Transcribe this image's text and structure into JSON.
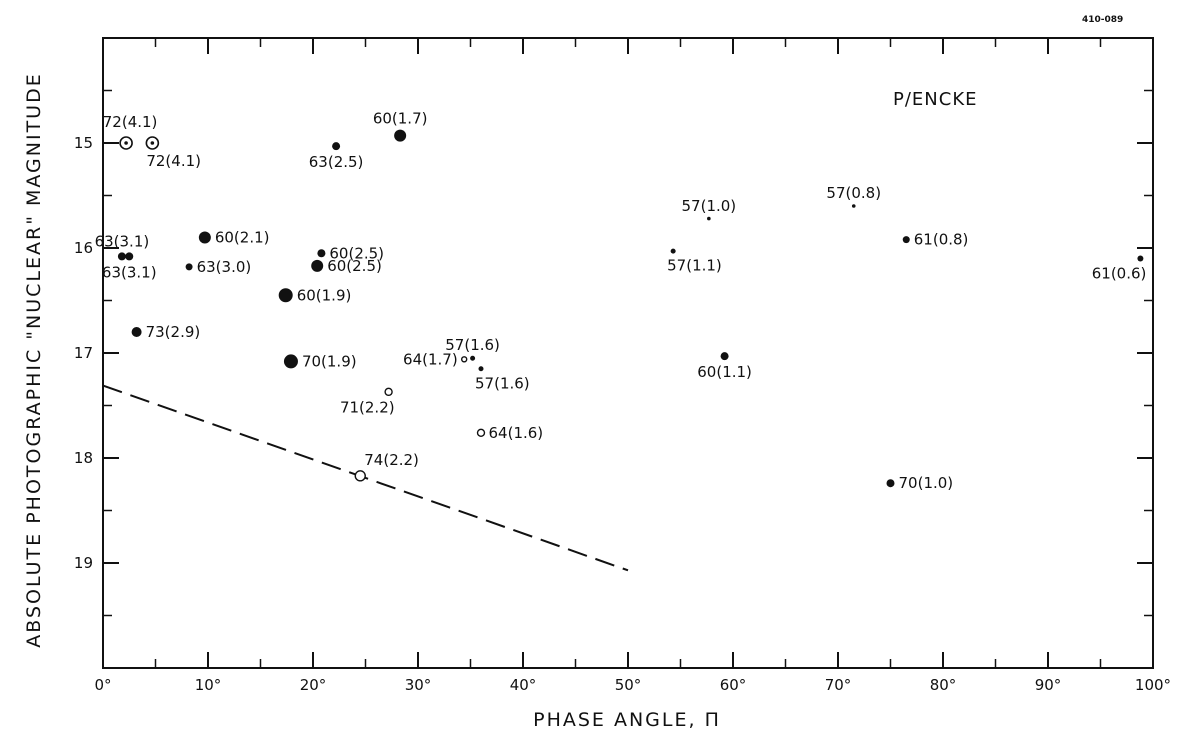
{
  "figure_id": "410-089",
  "chart_data": {
    "type": "scatter",
    "title": "P/ENCKE",
    "xlabel": "PHASE ANGLE, Π",
    "ylabel": "ABSOLUTE PHOTOGRAPHIC \"NUCLEAR\" MAGNITUDE",
    "xlim": [
      0,
      100
    ],
    "ylim": [
      14.0,
      20.0
    ],
    "y_inverted": true,
    "grid": false,
    "x_ticks": [
      0,
      10,
      20,
      30,
      40,
      50,
      60,
      70,
      80,
      90,
      100
    ],
    "x_tick_labels": [
      "0°",
      "10°",
      "20°",
      "30°",
      "40°",
      "50°",
      "60°",
      "70°",
      "80°",
      "90°",
      "100°"
    ],
    "y_ticks": [
      15,
      16,
      17,
      18,
      19
    ],
    "y_tick_labels": [
      "15",
      "16",
      "17",
      "18",
      "19"
    ],
    "points": [
      {
        "x": 2.2,
        "y": 15.0,
        "label": "72(4.1)",
        "marker": "circled-dot",
        "size": 6,
        "label_pos": "above-left"
      },
      {
        "x": 4.7,
        "y": 15.0,
        "label": "72(4.1)",
        "marker": "circled-dot",
        "size": 6,
        "label_pos": "below-right"
      },
      {
        "x": 28.3,
        "y": 14.93,
        "label": "60(1.7)",
        "marker": "filled",
        "size": 6,
        "label_pos": "above"
      },
      {
        "x": 22.2,
        "y": 15.03,
        "label": "63(2.5)",
        "marker": "filled",
        "size": 4,
        "label_pos": "below"
      },
      {
        "x": 57.7,
        "y": 15.72,
        "label": "57(1.0)",
        "marker": "filled",
        "size": 1.8,
        "label_pos": "above"
      },
      {
        "x": 71.5,
        "y": 15.6,
        "label": "57(0.8)",
        "marker": "filled",
        "size": 1.8,
        "label_pos": "above"
      },
      {
        "x": 1.8,
        "y": 16.08,
        "label": "63(3.1)",
        "marker": "filled",
        "size": 4,
        "label_pos": "above"
      },
      {
        "x": 2.5,
        "y": 16.08,
        "label": "63(3.1)",
        "marker": "filled",
        "size": 4,
        "label_pos": "below"
      },
      {
        "x": 9.7,
        "y": 15.9,
        "label": "60(2.1)",
        "marker": "filled",
        "size": 6,
        "label_pos": "right"
      },
      {
        "x": 8.2,
        "y": 16.18,
        "label": "63(3.0)",
        "marker": "filled",
        "size": 3.5,
        "label_pos": "right"
      },
      {
        "x": 20.8,
        "y": 16.05,
        "label": "60(2.5)",
        "marker": "filled",
        "size": 4,
        "label_pos": "right"
      },
      {
        "x": 20.4,
        "y": 16.17,
        "label": "60(2.5)",
        "marker": "filled",
        "size": 6,
        "label_pos": "right"
      },
      {
        "x": 17.4,
        "y": 16.45,
        "label": "60(1.9)",
        "marker": "filled",
        "size": 7,
        "label_pos": "right"
      },
      {
        "x": 54.3,
        "y": 16.03,
        "label": "57(1.1)",
        "marker": "filled",
        "size": 2.5,
        "label_pos": "below-right"
      },
      {
        "x": 76.5,
        "y": 15.92,
        "label": "61(0.8)",
        "marker": "filled",
        "size": 3.5,
        "label_pos": "right"
      },
      {
        "x": 98.8,
        "y": 16.1,
        "label": "61(0.6)",
        "marker": "filled",
        "size": 3,
        "label_pos": "below-left"
      },
      {
        "x": 3.2,
        "y": 16.8,
        "label": "73(2.9)",
        "marker": "filled",
        "size": 5,
        "label_pos": "right"
      },
      {
        "x": 17.9,
        "y": 17.08,
        "label": "70(1.9)",
        "marker": "filled",
        "size": 7,
        "label_pos": "right"
      },
      {
        "x": 34.4,
        "y": 17.06,
        "label": "64(1.7)",
        "marker": "open",
        "size": 2.5,
        "label_pos": "left"
      },
      {
        "x": 35.2,
        "y": 17.05,
        "label": "57(1.6)",
        "marker": "filled",
        "size": 2.5,
        "label_pos": "above"
      },
      {
        "x": 36.0,
        "y": 17.15,
        "label": "57(1.6)",
        "marker": "filled",
        "size": 2.5,
        "label_pos": "below-right"
      },
      {
        "x": 27.2,
        "y": 17.37,
        "label": "71(2.2)",
        "marker": "open",
        "size": 3.5,
        "label_pos": "below-left"
      },
      {
        "x": 59.2,
        "y": 17.03,
        "label": "60(1.1)",
        "marker": "filled",
        "size": 4,
        "label_pos": "below"
      },
      {
        "x": 36.0,
        "y": 17.76,
        "label": "64(1.6)",
        "marker": "open",
        "size": 3.5,
        "label_pos": "right"
      },
      {
        "x": 24.5,
        "y": 18.17,
        "label": "74(2.2)",
        "marker": "open",
        "size": 5,
        "label_pos": "above-right"
      },
      {
        "x": 75.0,
        "y": 18.24,
        "label": "70(1.0)",
        "marker": "filled",
        "size": 4,
        "label_pos": "right"
      }
    ],
    "lines": [
      {
        "style": "dashed",
        "points": [
          [
            0,
            17.31
          ],
          [
            50,
            19.07
          ]
        ]
      }
    ]
  }
}
